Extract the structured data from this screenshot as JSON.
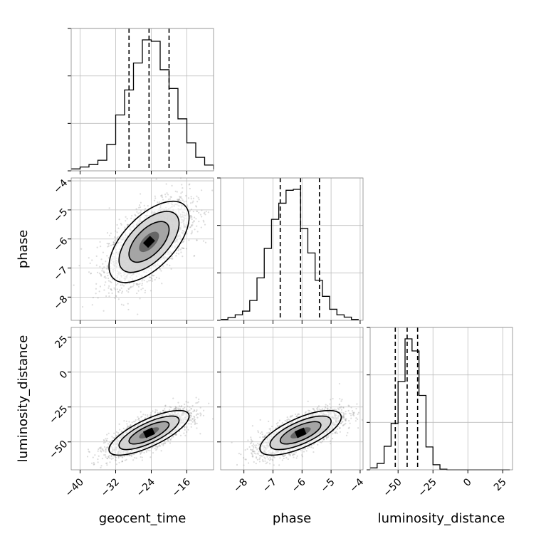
{
  "chart_data": {
    "type": "corner",
    "parameters": [
      {
        "name": "geocent_time",
        "label": "geocent_time",
        "range": [
          -42,
          -10
        ],
        "ticks": [
          -40,
          -32,
          -24,
          -16
        ],
        "tick_labels": [
          "−40",
          "−32",
          "−24",
          "−16"
        ],
        "quantiles": [
          -29,
          -24.5,
          -20
        ]
      },
      {
        "name": "phase",
        "label": "phase",
        "range": [
          -8.8,
          -3.9
        ],
        "ticks": [
          -8,
          -7,
          -6,
          -5,
          -4
        ],
        "tick_labels": [
          "−8",
          "−7",
          "−6",
          "−5",
          "−4"
        ],
        "quantiles": [
          -6.75,
          -6.05,
          -5.4
        ]
      },
      {
        "name": "luminosity_distance",
        "label": "luminosity_distance",
        "range": [
          -70,
          32
        ],
        "ticks": [
          -50,
          -25,
          0,
          25
        ],
        "tick_labels": [
          "−50",
          "−25",
          "0",
          "25"
        ],
        "quantiles": [
          -52,
          -43.5,
          -36
        ]
      }
    ],
    "histograms": [
      {
        "parameter": "geocent_time",
        "bin_edges": [
          -42,
          -40,
          -38,
          -36,
          -34,
          -32,
          -30,
          -28,
          -26,
          -24,
          -22,
          -20,
          -18,
          -16,
          -14,
          -12,
          -10
        ],
        "counts": [
          4,
          8,
          13,
          22,
          55,
          116,
          168,
          224,
          272,
          269,
          210,
          171,
          108,
          58,
          28,
          12,
          3
        ]
      },
      {
        "parameter": "phase",
        "bin_edges": [
          -8.8,
          -8.55,
          -8.3,
          -8.05,
          -7.8,
          -7.55,
          -7.3,
          -7.05,
          -6.8,
          -6.55,
          -6.3,
          -6.05,
          -5.8,
          -5.55,
          -5.3,
          -5.05,
          -4.8,
          -4.55,
          -4.3,
          -4.05
        ],
        "counts": [
          2,
          6,
          12,
          20,
          43,
          92,
          156,
          219,
          254,
          282,
          284,
          199,
          146,
          87,
          52,
          24,
          12,
          7,
          2
        ]
      },
      {
        "parameter": "luminosity_distance",
        "bin_edges": [
          -70,
          -65,
          -60,
          -55,
          -50,
          -45,
          -40,
          -35,
          -30,
          -25,
          -20,
          -15,
          -10,
          -5,
          0,
          5,
          10,
          15,
          20,
          25,
          30
        ],
        "counts": [
          3,
          10,
          37,
          73,
          139,
          206,
          187,
          117,
          36,
          8,
          1,
          0,
          0,
          0,
          0,
          0,
          0,
          0,
          0,
          0
        ]
      }
    ],
    "joint": [
      {
        "x": "geocent_time",
        "y": "phase",
        "mean": [
          -24.5,
          -6.1
        ],
        "sd": [
          4.5,
          0.7
        ],
        "rho": 0.6
      },
      {
        "x": "geocent_time",
        "y": "luminosity_distance",
        "mean": [
          -24.5,
          -43.5
        ],
        "sd": [
          4.5,
          8.0
        ],
        "rho": 0.75
      },
      {
        "x": "phase",
        "y": "luminosity_distance",
        "mean": [
          -6.05,
          -43.5
        ],
        "sd": [
          0.7,
          8.0
        ],
        "rho": 0.7
      }
    ],
    "contour_levels": [
      0.5,
      1.0,
      1.5,
      2.0
    ],
    "grid": true,
    "quantile_style": "dashed"
  }
}
